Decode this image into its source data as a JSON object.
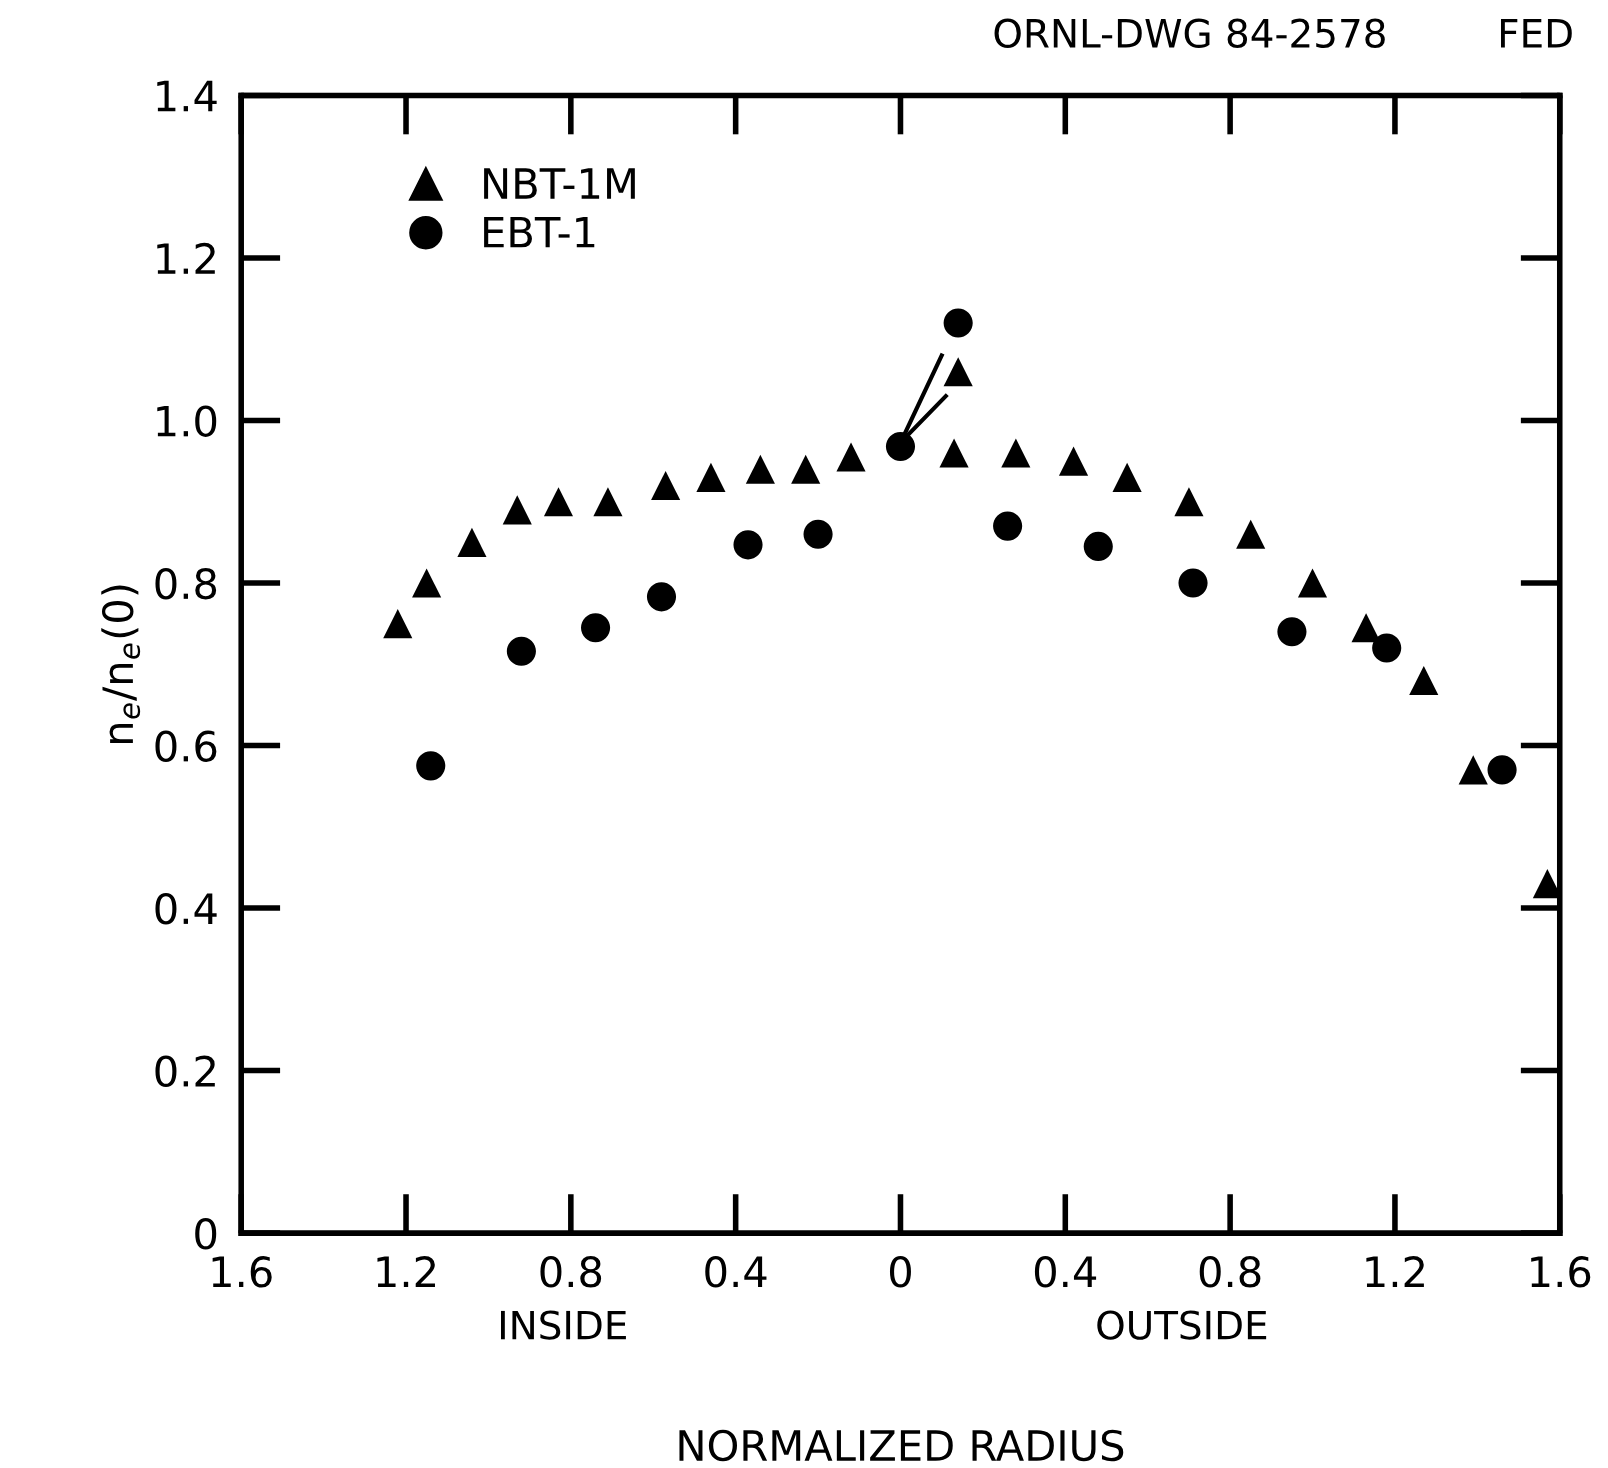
{
  "chart_data": {
    "type": "scatter",
    "xlabel": "NORMALIZED RADIUS",
    "ylabel": "n$_{e}$/n$_{e}$(0)",
    "annotations": [
      "ORNL-DWG 84-2578",
      "FED",
      "INSIDE",
      "OUTSIDE"
    ],
    "xlim": [
      -1.6,
      1.6
    ],
    "ylim": [
      0,
      1.4
    ],
    "xticks": [
      {
        "value": -1.6,
        "label": "1.6"
      },
      {
        "value": -1.2,
        "label": "1.2"
      },
      {
        "value": -0.8,
        "label": "0.8"
      },
      {
        "value": -0.4,
        "label": "0.4"
      },
      0,
      0.4,
      0.8,
      1.2,
      1.6
    ],
    "yticks": [
      {
        "value": 0,
        "label": "0"
      },
      0.2,
      0.4,
      0.6,
      0.8,
      {
        "value": 1.0,
        "label": "1.0"
      },
      1.2,
      1.4
    ],
    "grid": false,
    "legend": "top left",
    "series": [
      {
        "name": "NBT-1M",
        "color": "#000000",
        "marker": "triangle",
        "x": [
          -1.22,
          -1.15,
          -1.04,
          -0.93,
          -0.83,
          -0.71,
          -0.57,
          -0.46,
          -0.34,
          -0.23,
          -0.12,
          0.14,
          0.13,
          0.28,
          0.42,
          0.55,
          0.7,
          0.85,
          1.0,
          1.13,
          1.27,
          1.39,
          1.57
        ],
        "values": [
          0.75,
          0.8,
          0.85,
          0.89,
          0.9,
          0.9,
          0.92,
          0.93,
          0.94,
          0.94,
          0.955,
          1.06,
          0.96,
          0.96,
          0.95,
          0.93,
          0.9,
          0.86,
          0.8,
          0.745,
          0.68,
          0.57,
          0.43
        ]
      },
      {
        "name": "EBT-1",
        "color": "#000000",
        "marker": "circle",
        "x": [
          -1.14,
          -0.92,
          -0.74,
          -0.58,
          -0.37,
          -0.2,
          0.0,
          0.14,
          0.26,
          0.48,
          0.71,
          0.95,
          1.18,
          1.46
        ],
        "values": [
          0.575,
          0.716,
          0.745,
          0.783,
          0.847,
          0.86,
          0.968,
          1.12,
          0.87,
          0.845,
          0.8,
          0.74,
          0.72,
          0.57
        ]
      }
    ]
  }
}
